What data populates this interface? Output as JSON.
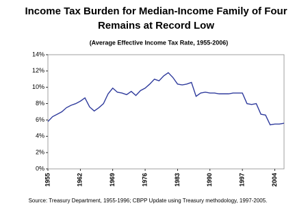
{
  "chart_data": {
    "type": "line",
    "title": [
      "Income Tax Burden for Median-Income Family of Four",
      "Remains at Record Low"
    ],
    "subtitle": "(Average Effective Income Tax Rate, 1955-2006)",
    "source": "Source: Treasury Department, 1955-1996; CBPP Update using Treasury methodology, 1997-2005.",
    "x": [
      1955,
      1956,
      1957,
      1958,
      1959,
      1960,
      1961,
      1962,
      1963,
      1964,
      1965,
      1966,
      1967,
      1968,
      1969,
      1970,
      1971,
      1972,
      1973,
      1974,
      1975,
      1976,
      1977,
      1978,
      1979,
      1980,
      1981,
      1982,
      1983,
      1984,
      1985,
      1986,
      1987,
      1988,
      1989,
      1990,
      1991,
      1992,
      1993,
      1994,
      1995,
      1996,
      1997,
      1998,
      1999,
      2000,
      2001,
      2002,
      2003,
      2004,
      2005,
      2006
    ],
    "series": [
      {
        "color": "#2e3a9c",
        "values": [
          5.8,
          6.4,
          6.7,
          7.0,
          7.5,
          7.8,
          8.0,
          8.3,
          8.7,
          7.6,
          7.1,
          7.5,
          8.0,
          9.2,
          9.9,
          9.4,
          9.3,
          9.1,
          9.5,
          9.0,
          9.6,
          9.9,
          10.4,
          11.0,
          10.8,
          11.4,
          11.8,
          11.2,
          10.4,
          10.3,
          10.4,
          10.6,
          8.9,
          9.3,
          9.4,
          9.3,
          9.3,
          9.2,
          9.2,
          9.2,
          9.3,
          9.3,
          9.3,
          8.0,
          7.9,
          8.0,
          6.7,
          6.6,
          5.4,
          5.5,
          5.5,
          5.6
        ]
      }
    ],
    "xlim": [
      1955,
      2006
    ],
    "xticks": [
      1955,
      1962,
      1969,
      1976,
      1983,
      1990,
      1997,
      2004
    ],
    "ylim": [
      0,
      14
    ],
    "yticks": [
      {
        "value": 0,
        "label": "0%"
      },
      {
        "value": 2,
        "label": "2%"
      },
      {
        "value": 4,
        "label": "4%"
      },
      {
        "value": 6,
        "label": "6%"
      },
      {
        "value": 8,
        "label": "8%"
      },
      {
        "value": 10,
        "label": "10%"
      },
      {
        "value": 12,
        "label": "12%"
      },
      {
        "value": 14,
        "label": "14%"
      }
    ]
  }
}
